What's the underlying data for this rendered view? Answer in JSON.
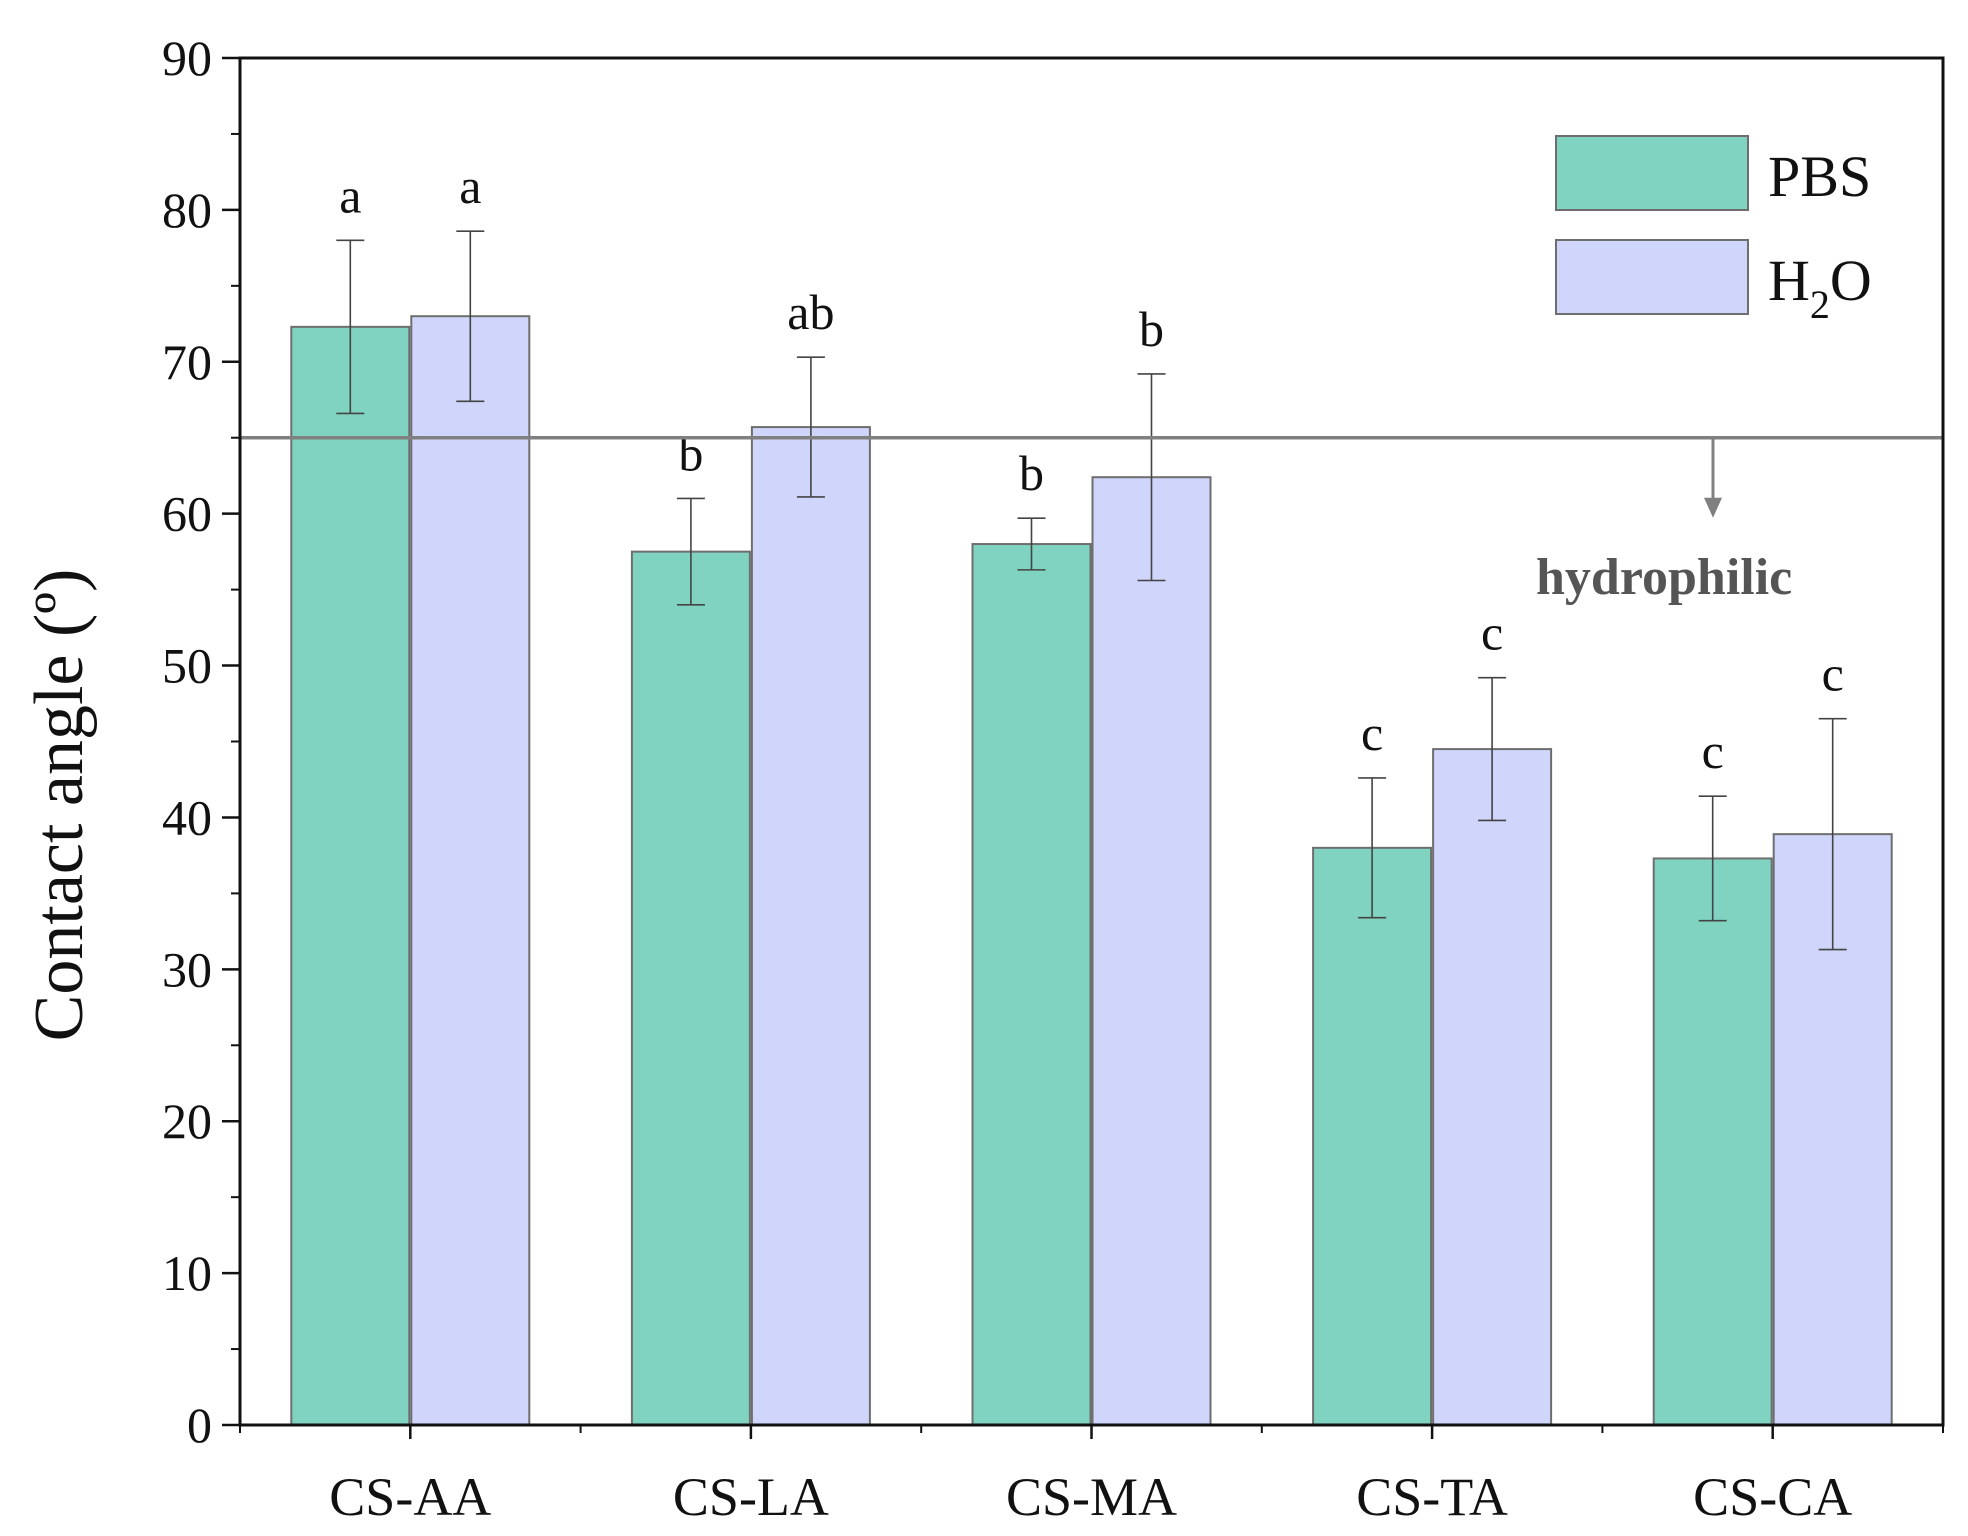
{
  "chart_data": {
    "type": "bar",
    "title": "",
    "xlabel": "",
    "ylabel": "Contact angle (º)",
    "ylim": [
      0,
      90
    ],
    "yticks": [
      0,
      10,
      20,
      30,
      40,
      50,
      60,
      70,
      80,
      90
    ],
    "categories": [
      "CS-AA",
      "CS-LA",
      "CS-MA",
      "CS-TA",
      "CS-CA"
    ],
    "series": [
      {
        "name": "PBS",
        "color": "#80d3c1",
        "values": [
          72.3,
          57.5,
          58.0,
          38.0,
          37.3
        ],
        "errors": [
          5.7,
          3.5,
          1.7,
          4.6,
          4.1
        ],
        "labels": [
          "a",
          "b",
          "b",
          "c",
          "c"
        ]
      },
      {
        "name": "H2O",
        "color": "#cfd5fb",
        "values": [
          73.0,
          65.7,
          62.4,
          44.5,
          38.9
        ],
        "errors": [
          5.6,
          4.6,
          6.8,
          4.7,
          7.6
        ],
        "labels": [
          "a",
          "ab",
          "b",
          "c",
          "c"
        ]
      }
    ],
    "legend": {
      "position": "top-right",
      "entries": [
        "PBS",
        "H2O"
      ],
      "h2o_parts": {
        "base": "H",
        "sub": "2",
        "tail": "O"
      }
    },
    "threshold": {
      "value": 65,
      "label": "hydrophilic",
      "color": "#808080"
    }
  }
}
